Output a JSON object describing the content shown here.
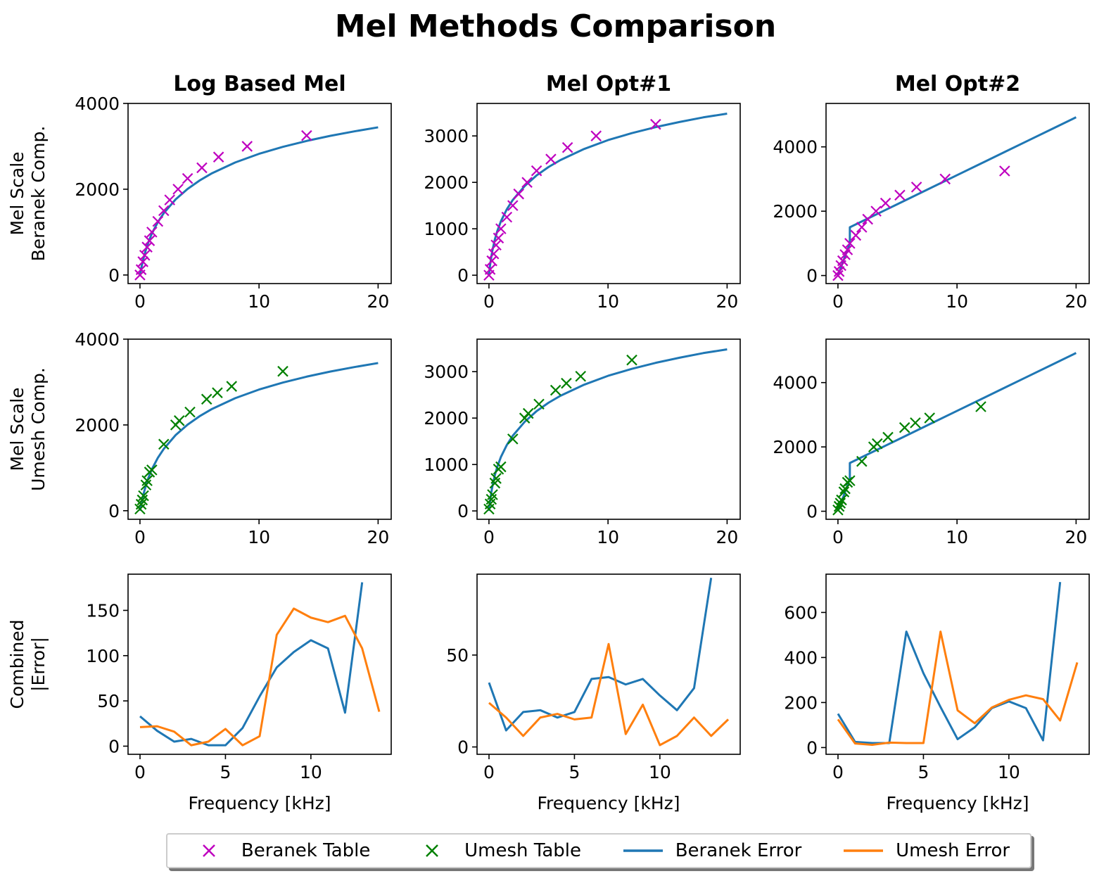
{
  "figure": {
    "title": "Mel Methods Comparison"
  },
  "legend": {
    "items": [
      {
        "label": "Beranek Table",
        "kind": "marker",
        "color": "#bf00bf"
      },
      {
        "label": "Umesh Table",
        "kind": "marker",
        "color": "#008000"
      },
      {
        "label": "Beranek Error",
        "kind": "line",
        "color": "#1f77b4"
      },
      {
        "label": "Umesh Error",
        "kind": "line",
        "color": "#ff7f0e"
      }
    ]
  },
  "chart_data": [
    {
      "type": "line",
      "row": 0,
      "col": 0,
      "title": "Log Based Mel",
      "xlabel": "",
      "ylabel": "Mel Scale\nBeranek Comp.",
      "xlim": [
        -1,
        21.1
      ],
      "ylim": [
        -200,
        4000
      ],
      "xticks": [
        0,
        10,
        20
      ],
      "yticks": [
        0,
        2000,
        4000
      ],
      "series": [
        {
          "name": "",
          "style": "line",
          "color": "#1f77b4",
          "x": [
            0,
            0.05,
            0.1,
            0.2,
            0.3,
            0.5,
            0.7,
            1,
            1.5,
            2,
            3,
            4,
            5,
            6,
            8,
            10,
            12,
            14,
            16,
            18,
            20
          ],
          "y": [
            0,
            75,
            146,
            275,
            391,
            591,
            759,
            967,
            1232,
            1442,
            1765,
            2007,
            2202,
            2365,
            2624,
            2825,
            2988,
            3126,
            3245,
            3349,
            3443
          ]
        },
        {
          "name": "Beranek Table",
          "style": "marker",
          "color": "#bf00bf",
          "x": [
            0,
            0.1,
            0.25,
            0.4,
            0.6,
            0.8,
            1.0,
            1.5,
            2.0,
            2.5,
            3.2,
            4.0,
            5.2,
            6.6,
            9.0,
            14.0
          ],
          "y": [
            0,
            125,
            310,
            460,
            650,
            800,
            1000,
            1250,
            1500,
            1750,
            2000,
            2250,
            2500,
            2750,
            3000,
            3250
          ]
        }
      ]
    },
    {
      "type": "line",
      "row": 0,
      "col": 1,
      "title": "Mel Opt#1",
      "xlabel": "",
      "ylabel": "",
      "xlim": [
        -1,
        21.1
      ],
      "ylim": [
        -180,
        3700
      ],
      "xticks": [
        0,
        10,
        20
      ],
      "yticks": [
        0,
        1000,
        2000,
        3000
      ],
      "series": [
        {
          "name": "",
          "style": "line",
          "color": "#1f77b4",
          "x": [
            0,
            0.05,
            0.1,
            0.2,
            0.3,
            0.5,
            0.7,
            1,
            1.5,
            2,
            3,
            4,
            5,
            6,
            8,
            10,
            12,
            14,
            16,
            18,
            20
          ],
          "y": [
            0,
            120,
            225,
            400,
            545,
            775,
            950,
            1160,
            1420,
            1620,
            1920,
            2150,
            2330,
            2480,
            2720,
            2910,
            3060,
            3190,
            3300,
            3400,
            3480
          ]
        },
        {
          "name": "Beranek Table",
          "style": "marker",
          "color": "#bf00bf",
          "x": [
            0,
            0.1,
            0.25,
            0.4,
            0.6,
            0.8,
            1.0,
            1.5,
            2.0,
            2.5,
            3.2,
            4.0,
            5.2,
            6.6,
            9.0,
            14.0
          ],
          "y": [
            0,
            125,
            310,
            460,
            650,
            800,
            1000,
            1250,
            1500,
            1750,
            2000,
            2250,
            2500,
            2750,
            3000,
            3250
          ]
        }
      ]
    },
    {
      "type": "line",
      "row": 0,
      "col": 2,
      "title": "Mel Opt#2",
      "xlabel": "",
      "ylabel": "",
      "xlim": [
        -1,
        21.1
      ],
      "ylim": [
        -250,
        5350
      ],
      "xticks": [
        0,
        10,
        20
      ],
      "yticks": [
        0,
        2000,
        4000
      ],
      "series": [
        {
          "name": "",
          "style": "line",
          "color": "#1f77b4",
          "x": [
            0,
            0.2,
            0.4,
            0.6,
            0.8,
            0.999,
            1.0,
            2,
            4,
            6,
            8,
            10,
            12,
            14,
            16,
            18,
            20
          ],
          "y": [
            0,
            200,
            400,
            600,
            800,
            1000,
            1500,
            1680,
            2040,
            2400,
            2760,
            3120,
            3480,
            3840,
            4200,
            4560,
            4920
          ]
        },
        {
          "name": "Beranek Table",
          "style": "marker",
          "color": "#bf00bf",
          "x": [
            0,
            0.1,
            0.25,
            0.4,
            0.6,
            0.8,
            1.0,
            1.5,
            2.0,
            2.5,
            3.2,
            4.0,
            5.2,
            6.6,
            9.0,
            14.0
          ],
          "y": [
            0,
            125,
            310,
            460,
            650,
            800,
            1000,
            1250,
            1500,
            1750,
            2000,
            2250,
            2500,
            2750,
            3000,
            3250
          ]
        }
      ]
    },
    {
      "type": "line",
      "row": 1,
      "col": 0,
      "title": "",
      "xlabel": "",
      "ylabel": "Mel Scale\nUmesh Comp.",
      "xlim": [
        -1,
        21.1
      ],
      "ylim": [
        -200,
        4000
      ],
      "xticks": [
        0,
        10,
        20
      ],
      "yticks": [
        0,
        2000,
        4000
      ],
      "series": [
        {
          "name": "",
          "style": "line",
          "color": "#1f77b4",
          "x": [
            0,
            0.05,
            0.1,
            0.2,
            0.3,
            0.5,
            0.7,
            1,
            1.5,
            2,
            3,
            4,
            5,
            6,
            8,
            10,
            12,
            14,
            16,
            18,
            20
          ],
          "y": [
            0,
            75,
            146,
            275,
            391,
            591,
            759,
            967,
            1232,
            1442,
            1765,
            2007,
            2202,
            2365,
            2624,
            2825,
            2988,
            3126,
            3245,
            3349,
            3443
          ]
        },
        {
          "name": "Umesh Table",
          "style": "marker",
          "color": "#008000",
          "x": [
            0,
            0.1,
            0.2,
            0.3,
            0.5,
            0.6,
            0.8,
            1.0,
            2.0,
            3.0,
            3.3,
            4.2,
            5.6,
            6.5,
            7.7,
            12.0
          ],
          "y": [
            40,
            150,
            250,
            350,
            600,
            700,
            900,
            950,
            1550,
            2000,
            2100,
            2300,
            2600,
            2750,
            2900,
            3250
          ]
        }
      ]
    },
    {
      "type": "line",
      "row": 1,
      "col": 1,
      "title": "",
      "xlabel": "",
      "ylabel": "",
      "xlim": [
        -1,
        21.1
      ],
      "ylim": [
        -180,
        3700
      ],
      "xticks": [
        0,
        10,
        20
      ],
      "yticks": [
        0,
        1000,
        2000,
        3000
      ],
      "series": [
        {
          "name": "",
          "style": "line",
          "color": "#1f77b4",
          "x": [
            0,
            0.05,
            0.1,
            0.2,
            0.3,
            0.5,
            0.7,
            1,
            1.5,
            2,
            3,
            4,
            5,
            6,
            8,
            10,
            12,
            14,
            16,
            18,
            20
          ],
          "y": [
            0,
            120,
            225,
            400,
            545,
            775,
            950,
            1160,
            1420,
            1620,
            1920,
            2150,
            2330,
            2480,
            2720,
            2910,
            3060,
            3190,
            3300,
            3400,
            3480
          ]
        },
        {
          "name": "Umesh Table",
          "style": "marker",
          "color": "#008000",
          "x": [
            0,
            0.1,
            0.2,
            0.3,
            0.5,
            0.6,
            0.8,
            1.0,
            2.0,
            3.0,
            3.3,
            4.2,
            5.6,
            6.5,
            7.7,
            12.0
          ],
          "y": [
            40,
            150,
            250,
            350,
            600,
            700,
            900,
            950,
            1550,
            2000,
            2100,
            2300,
            2600,
            2750,
            2900,
            3250
          ]
        }
      ]
    },
    {
      "type": "line",
      "row": 1,
      "col": 2,
      "title": "",
      "xlabel": "",
      "ylabel": "",
      "xlim": [
        -1,
        21.1
      ],
      "ylim": [
        -250,
        5350
      ],
      "xticks": [
        0,
        10,
        20
      ],
      "yticks": [
        0,
        2000,
        4000
      ],
      "series": [
        {
          "name": "",
          "style": "line",
          "color": "#1f77b4",
          "x": [
            0,
            0.2,
            0.4,
            0.6,
            0.8,
            0.999,
            1.0,
            2,
            4,
            6,
            8,
            10,
            12,
            14,
            16,
            18,
            20
          ],
          "y": [
            0,
            200,
            400,
            600,
            800,
            1000,
            1500,
            1680,
            2040,
            2400,
            2760,
            3120,
            3480,
            3840,
            4200,
            4560,
            4920
          ]
        },
        {
          "name": "Umesh Table",
          "style": "marker",
          "color": "#008000",
          "x": [
            0,
            0.1,
            0.2,
            0.3,
            0.5,
            0.6,
            0.8,
            1.0,
            2.0,
            3.0,
            3.3,
            4.2,
            5.6,
            6.5,
            7.7,
            12.0
          ],
          "y": [
            40,
            150,
            250,
            350,
            600,
            700,
            900,
            950,
            1550,
            2000,
            2100,
            2300,
            2600,
            2750,
            2900,
            3250
          ]
        }
      ]
    },
    {
      "type": "line",
      "row": 2,
      "col": 0,
      "title": "",
      "xlabel": "Frequency [kHz]",
      "ylabel": "Combined\n|Error|",
      "xlim": [
        -0.7,
        14.7
      ],
      "ylim": [
        -9,
        190
      ],
      "xticks": [
        0,
        5,
        10
      ],
      "yticks": [
        0,
        50,
        100,
        150
      ],
      "series": [
        {
          "name": "Beranek Error",
          "style": "line",
          "color": "#1f77b4",
          "x": [
            0,
            1,
            2,
            3,
            4,
            5,
            6,
            7,
            8,
            9,
            10,
            11,
            12,
            13
          ],
          "y": [
            33,
            17,
            5,
            8,
            1,
            1,
            20,
            55,
            87,
            104,
            117,
            108,
            37,
            181
          ]
        },
        {
          "name": "Umesh Error",
          "style": "line",
          "color": "#ff7f0e",
          "x": [
            0,
            1,
            2,
            3,
            4,
            5,
            6,
            7,
            8,
            9,
            10,
            11,
            12,
            13,
            14
          ],
          "y": [
            21,
            22,
            16,
            1,
            5,
            19,
            1,
            11,
            123,
            152,
            142,
            137,
            144,
            108,
            38
          ]
        }
      ]
    },
    {
      "type": "line",
      "row": 2,
      "col": 1,
      "title": "",
      "xlabel": "Frequency [kHz]",
      "ylabel": "",
      "xlim": [
        -0.7,
        14.7
      ],
      "ylim": [
        -4,
        94
      ],
      "xticks": [
        0,
        5,
        10
      ],
      "yticks": [
        0,
        50
      ],
      "series": [
        {
          "name": "Beranek Error",
          "style": "line",
          "color": "#1f77b4",
          "x": [
            0,
            1,
            2,
            3,
            4,
            5,
            6,
            7,
            8,
            9,
            10,
            11,
            12,
            13
          ],
          "y": [
            35,
            9,
            19,
            20,
            16,
            19,
            37,
            38,
            34,
            37,
            28,
            20,
            32,
            92
          ]
        },
        {
          "name": "Umesh Error",
          "style": "line",
          "color": "#ff7f0e",
          "x": [
            0,
            1,
            2,
            3,
            4,
            5,
            6,
            7,
            8,
            9,
            10,
            11,
            12,
            13,
            14
          ],
          "y": [
            24,
            16,
            6,
            16,
            18,
            15,
            16,
            56,
            7,
            23,
            1,
            6,
            16,
            6,
            15
          ]
        }
      ]
    },
    {
      "type": "line",
      "row": 2,
      "col": 2,
      "title": "",
      "xlabel": "Frequency [kHz]",
      "ylabel": "",
      "xlim": [
        -0.7,
        14.7
      ],
      "ylim": [
        -30,
        770
      ],
      "xticks": [
        0,
        5,
        10
      ],
      "yticks": [
        0,
        200,
        400,
        600
      ],
      "series": [
        {
          "name": "Beranek Error",
          "style": "line",
          "color": "#1f77b4",
          "x": [
            0,
            1,
            2,
            3,
            4,
            5,
            6,
            7,
            8,
            9,
            10,
            11,
            12,
            13
          ],
          "y": [
            150,
            25,
            20,
            20,
            515,
            330,
            180,
            37,
            90,
            175,
            205,
            175,
            32,
            735
          ]
        },
        {
          "name": "Umesh Error",
          "style": "line",
          "color": "#ff7f0e",
          "x": [
            0,
            1,
            2,
            3,
            4,
            5,
            6,
            7,
            8,
            9,
            10,
            11,
            12,
            13,
            14
          ],
          "y": [
            125,
            18,
            12,
            22,
            20,
            20,
            515,
            165,
            108,
            178,
            212,
            232,
            215,
            120,
            378
          ]
        }
      ]
    }
  ]
}
